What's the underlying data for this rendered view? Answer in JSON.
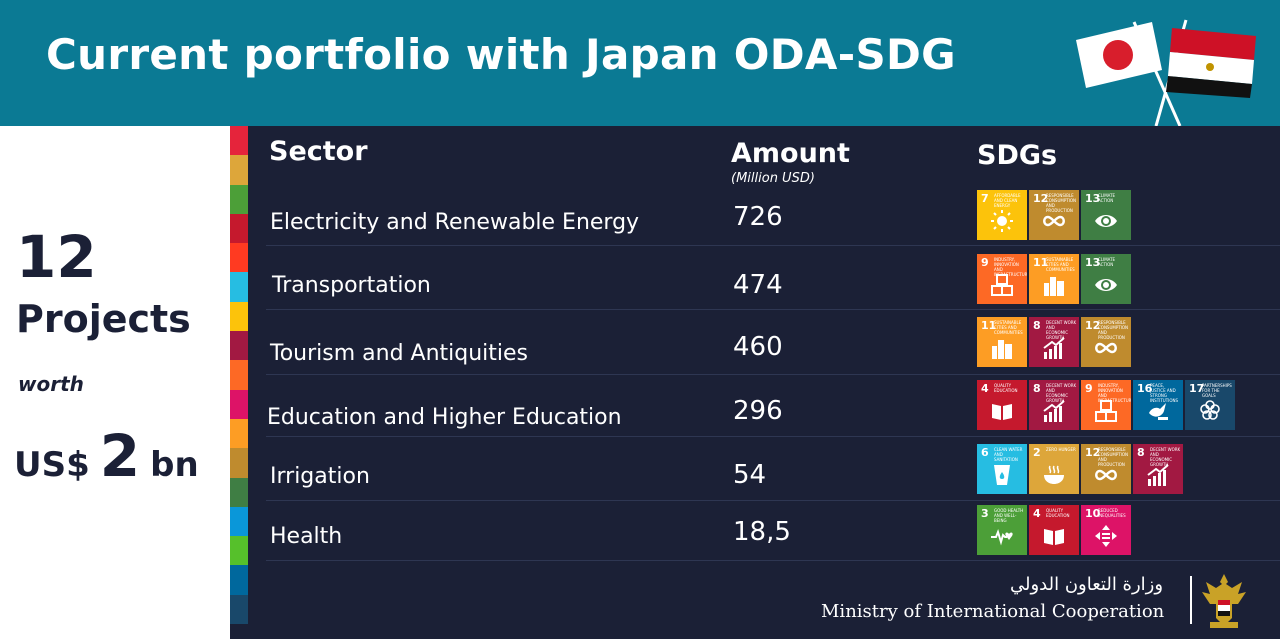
{
  "header": {
    "title": "Current portfolio with Japan ODA-SDG"
  },
  "summary": {
    "count": "12",
    "count_label": "Projects",
    "worth_label": "worth",
    "currency": "US$",
    "total": "2",
    "unit": "bn"
  },
  "columns": {
    "sector": "Sector",
    "amount": "Amount",
    "amount_unit": "(Million USD)",
    "sdgs": "SDGs"
  },
  "rows": [
    {
      "sector": "Electricity and Renewable Energy",
      "amount": "726",
      "sdgs": [
        {
          "num": "7",
          "title": "Affordable and clean energy",
          "color": "#fcc30b",
          "icon": "sun-icon"
        },
        {
          "num": "12",
          "title": "Responsible consumption and production",
          "color": "#bf8b2e",
          "icon": "infinity-icon"
        },
        {
          "num": "13",
          "title": "Climate action",
          "color": "#3f7e44",
          "icon": "eye-globe-icon"
        }
      ]
    },
    {
      "sector": "Transportation",
      "amount": "474",
      "sdgs": [
        {
          "num": "9",
          "title": "Industry, innovation and infrastructure",
          "color": "#fd6925",
          "icon": "cubes-icon"
        },
        {
          "num": "11",
          "title": "Sustainable cities and communities",
          "color": "#fd9d24",
          "icon": "city-icon"
        },
        {
          "num": "13",
          "title": "Climate action",
          "color": "#3f7e44",
          "icon": "eye-globe-icon"
        }
      ]
    },
    {
      "sector": "Tourism and Antiquities",
      "amount": "460",
      "sdgs": [
        {
          "num": "11",
          "title": "Sustainable cities and communities",
          "color": "#fd9d24",
          "icon": "city-icon"
        },
        {
          "num": "8",
          "title": "Decent work and economic growth",
          "color": "#a21942",
          "icon": "growth-chart-icon"
        },
        {
          "num": "12",
          "title": "Responsible consumption and production",
          "color": "#bf8b2e",
          "icon": "infinity-icon"
        }
      ]
    },
    {
      "sector": "Education and Higher Education",
      "amount": "296",
      "sdgs": [
        {
          "num": "4",
          "title": "Quality education",
          "color": "#c5192d",
          "icon": "book-icon"
        },
        {
          "num": "8",
          "title": "Decent work and economic growth",
          "color": "#a21942",
          "icon": "growth-chart-icon"
        },
        {
          "num": "9",
          "title": "Industry, innovation and infrastructure",
          "color": "#fd6925",
          "icon": "cubes-icon"
        },
        {
          "num": "16",
          "title": "Peace, justice and strong institutions",
          "color": "#00689d",
          "icon": "dove-icon"
        },
        {
          "num": "17",
          "title": "Partnerships for the goals",
          "color": "#19486a",
          "icon": "flower-rings-icon"
        }
      ]
    },
    {
      "sector": "Irrigation",
      "amount": "54",
      "sdgs": [
        {
          "num": "6",
          "title": "Clean water and sanitation",
          "color": "#26bde2",
          "icon": "water-glass-icon"
        },
        {
          "num": "2",
          "title": "Zero hunger",
          "color": "#dda63a",
          "icon": "bowl-icon"
        },
        {
          "num": "12",
          "title": "Responsible consumption and production",
          "color": "#bf8b2e",
          "icon": "infinity-icon"
        },
        {
          "num": "8",
          "title": "Decent work and economic growth",
          "color": "#a21942",
          "icon": "growth-chart-icon"
        }
      ]
    },
    {
      "sector": "Health",
      "amount": "18,5",
      "sdgs": [
        {
          "num": "3",
          "title": "Good health and well-being",
          "color": "#4c9f38",
          "icon": "heartbeat-icon"
        },
        {
          "num": "4",
          "title": "Quality education",
          "color": "#c5192d",
          "icon": "book-icon"
        },
        {
          "num": "10",
          "title": "Reduced inequalities",
          "color": "#dd1367",
          "icon": "equality-arrows-icon"
        }
      ]
    }
  ],
  "stripe_colors": [
    "#e5243b",
    "#dda63a",
    "#4c9f38",
    "#c5192d",
    "#ff3a21",
    "#26bde2",
    "#fcc30b",
    "#a21942",
    "#fd6925",
    "#dd1367",
    "#fd9d24",
    "#bf8b2e",
    "#3f7e44",
    "#0a97d9",
    "#56c02b",
    "#00689d",
    "#19486a"
  ],
  "footer": {
    "arabic": "وزارة التعاون الدولي",
    "english": "Ministry of  International Cooperation"
  }
}
